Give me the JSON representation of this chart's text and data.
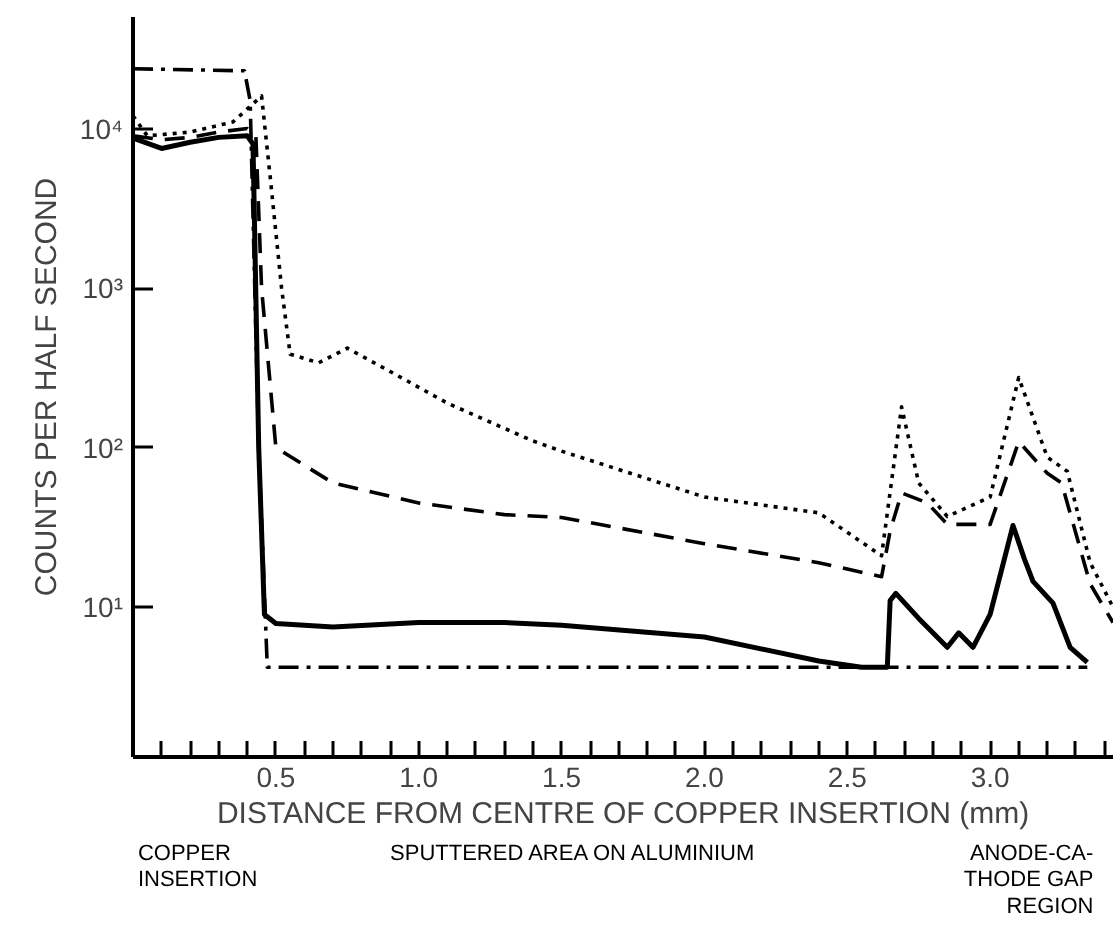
{
  "chart_data": {
    "type": "line",
    "xlabel": "DISTANCE FROM CENTRE OF COPPER INSERTION (mm)",
    "ylabel": "COUNTS PER HALF SECOND",
    "log": "y",
    "grid": false,
    "marker": "none",
    "xlim": [
      0,
      3.43
    ],
    "ylim": [
      1.15,
      50000
    ],
    "xticks": [
      {
        "value": 0.1,
        "label": null
      },
      {
        "value": 0.2,
        "label": null
      },
      {
        "value": 0.3,
        "label": null
      },
      {
        "value": 0.4,
        "label": null
      },
      "0.5",
      {
        "value": 0.6,
        "label": null
      },
      {
        "value": 0.7,
        "label": null
      },
      {
        "value": 0.8,
        "label": null
      },
      {
        "value": 0.9,
        "label": null
      },
      {
        "value": 1.0,
        "label": "1.0"
      },
      {
        "value": 1.1,
        "label": null
      },
      {
        "value": 1.2,
        "label": null
      },
      {
        "value": 1.3,
        "label": null
      },
      {
        "value": 1.4,
        "label": null
      },
      1.5,
      {
        "value": 1.6,
        "label": null
      },
      {
        "value": 1.7,
        "label": null
      },
      {
        "value": 1.8,
        "label": null
      },
      {
        "value": 1.9,
        "label": null
      },
      {
        "value": 2.0,
        "label": "2.0"
      },
      {
        "value": 2.1,
        "label": null
      },
      {
        "value": 2.2,
        "label": null
      },
      {
        "value": 2.3,
        "label": null
      },
      {
        "value": 2.4,
        "label": null
      },
      2.5,
      {
        "value": 2.6,
        "label": null
      },
      {
        "value": 2.7,
        "label": null
      },
      {
        "value": 2.8,
        "label": null
      },
      {
        "value": 2.9,
        "label": null
      },
      {
        "value": 3.0,
        "label": "3.0"
      },
      {
        "value": 3.1,
        "label": null
      },
      {
        "value": 3.2,
        "label": null
      },
      {
        "value": 3.3,
        "label": null
      },
      {
        "value": 3.4,
        "label": null
      }
    ],
    "yticks": [
      {
        "value": 10,
        "label": "10¹"
      },
      {
        "value": 100,
        "label": "10²"
      },
      {
        "value": 1000,
        "label": "10³"
      },
      {
        "value": 10000,
        "label": "10⁴"
      }
    ],
    "series": [
      {
        "color": "#000000",
        "line_style": "solid",
        "x": [
          0,
          0.1,
          0.2,
          0.3,
          0.4,
          0.42,
          0.44,
          0.46,
          0.5,
          0.7,
          1.0,
          1.3,
          1.5,
          2.0,
          2.4,
          2.55,
          2.64,
          2.65,
          2.67,
          2.75,
          2.85,
          2.89,
          2.94,
          3.0,
          3.08,
          3.12,
          3.15,
          3.22,
          3.28,
          3.34
        ],
        "values": [
          8700,
          7500,
          8200,
          8800,
          9000,
          8000,
          100,
          9,
          7.9,
          7.5,
          8,
          8,
          7.7,
          6.5,
          4.6,
          4.2,
          4.2,
          11,
          12.2,
          8.5,
          5.6,
          6.9,
          5.6,
          9,
          32.5,
          20,
          14.5,
          10.6,
          5.6,
          4.5
        ]
      },
      {
        "color": "#000000",
        "line_style": "dashed",
        "x": [
          0,
          0.1,
          0.2,
          0.3,
          0.4,
          0.43,
          0.45,
          0.5,
          0.7,
          1.0,
          1.3,
          1.5,
          2.0,
          2.4,
          2.62,
          2.65,
          2.69,
          2.78,
          2.85,
          3.0,
          3.1,
          3.2,
          3.25,
          3.35,
          3.43
        ],
        "values": [
          9000,
          8500,
          8800,
          9500,
          10000,
          9000,
          1000,
          100,
          60,
          45,
          38,
          36.5,
          25,
          19,
          15.5,
          30,
          52,
          45,
          33,
          33,
          109,
          69,
          60,
          14,
          8
        ]
      },
      {
        "color": "#000000",
        "line_style": "dotted",
        "x": [
          0,
          0.05,
          0.2,
          0.35,
          0.45,
          0.48,
          0.52,
          0.55,
          0.65,
          0.75,
          0.9,
          1.1,
          1.4,
          1.5,
          2.0,
          2.4,
          2.62,
          2.69,
          2.75,
          2.85,
          3.0,
          3.1,
          3.2,
          3.27,
          3.35,
          3.43
        ],
        "values": [
          12000,
          9000,
          9500,
          11000,
          16000,
          5000,
          1000,
          385,
          340,
          420,
          300,
          190,
          110,
          95,
          49,
          39,
          21,
          180,
          60,
          37,
          49,
          275,
          87,
          71,
          19,
          10
        ]
      },
      {
        "color": "#000000",
        "line_style": "dashdot",
        "x": [
          0,
          0.39,
          0.41,
          0.44,
          0.47,
          3.34
        ],
        "values": [
          23700,
          23000,
          15000,
          100,
          4.2,
          4.2
        ]
      }
    ],
    "annotations": [
      "COPPER\nINSERTION",
      "SPUTTERED AREA ON ALUMINIUM",
      "ANODE-CA-\nTHODE GAP\nREGION"
    ]
  }
}
